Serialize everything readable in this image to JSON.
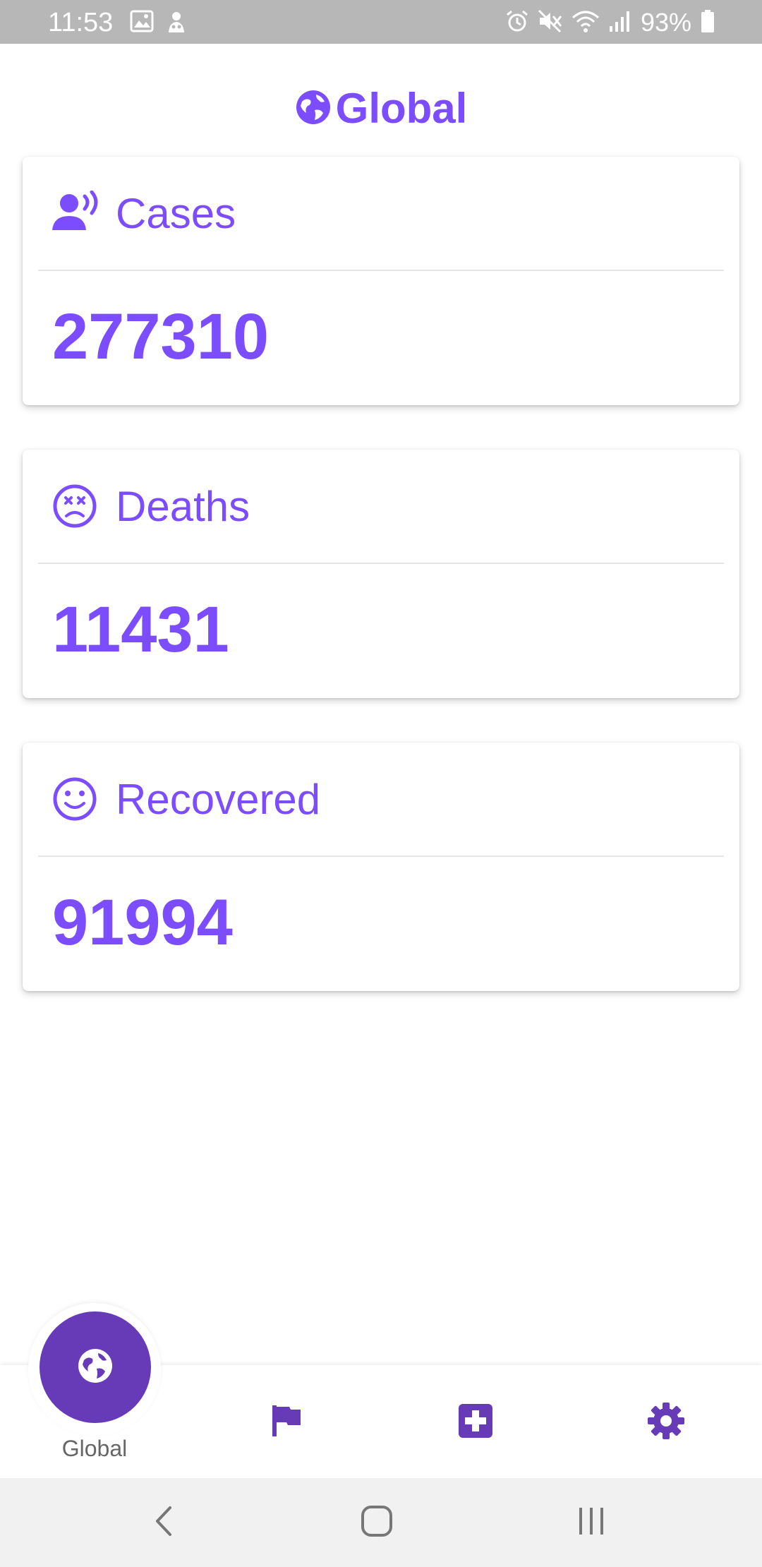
{
  "status_bar": {
    "time": "11:53",
    "battery": "93%",
    "icons_left": [
      "image-icon",
      "app-notification-icon"
    ],
    "icons_right": [
      "alarm-icon",
      "mute-icon",
      "wifi-icon",
      "signal-icon",
      "battery-icon"
    ]
  },
  "header": {
    "icon": "globe-icon",
    "title": "Global"
  },
  "cards": [
    {
      "icon": "person-voice-icon",
      "label": "Cases",
      "value": "277310"
    },
    {
      "icon": "dizzy-face-icon",
      "label": "Deaths",
      "value": "11431"
    },
    {
      "icon": "smile-face-icon",
      "label": "Recovered",
      "value": "91994"
    }
  ],
  "bottom_nav": {
    "active": {
      "icon": "globe-icon",
      "label": "Global"
    },
    "items": [
      {
        "icon": "flag-icon"
      },
      {
        "icon": "medical-plus-icon"
      },
      {
        "icon": "gear-icon"
      }
    ]
  },
  "system_nav": {
    "buttons": [
      "back-icon",
      "home-icon",
      "recents-icon"
    ]
  },
  "colors": {
    "accent": "#7c4dff",
    "primary_dark": "#673ab7",
    "status_bar": "#b7b7b7",
    "nav_bar": "#f1f1f1"
  }
}
